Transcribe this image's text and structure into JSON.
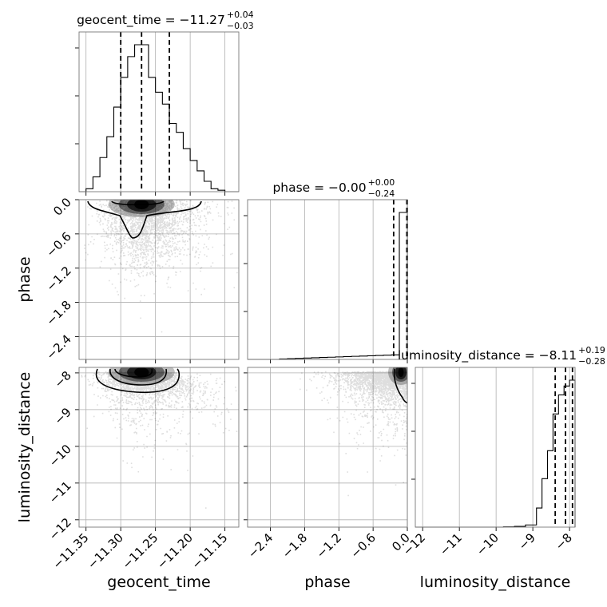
{
  "chart_data": {
    "type": "corner",
    "parameters": [
      {
        "name": "geocent_time",
        "title_main": "geocent_time = −11.27",
        "title_plus": "+0.04",
        "title_minus": "−0.03",
        "median": -11.27,
        "err_plus": 0.04,
        "err_minus": 0.03,
        "range": [
          -11.36,
          -11.13
        ],
        "ticks": [
          -11.35,
          -11.3,
          -11.25,
          -11.2,
          -11.15
        ],
        "tick_labels": [
          "−11.35",
          "−11.30",
          "−11.25",
          "−11.20",
          "−11.15"
        ],
        "quantile_lines": [
          -11.3,
          -11.27,
          -11.23
        ],
        "histogram": {
          "bin_edges": [
            -11.36,
            -11.35,
            -11.34,
            -11.33,
            -11.32,
            -11.31,
            -11.3,
            -11.29,
            -11.28,
            -11.27,
            -11.26,
            -11.25,
            -11.24,
            -11.23,
            -11.22,
            -11.21,
            -11.2,
            -11.19,
            -11.18,
            -11.17,
            -11.16,
            -11.15,
            -11.14,
            -11.13
          ],
          "counts": [
            0.0,
            0.02,
            0.1,
            0.23,
            0.37,
            0.57,
            0.77,
            0.91,
            0.99,
            0.99,
            0.77,
            0.67,
            0.59,
            0.46,
            0.4,
            0.29,
            0.21,
            0.14,
            0.07,
            0.02,
            0.01,
            0.0,
            0.0
          ]
        }
      },
      {
        "name": "phase",
        "title_main": "phase = −0.00",
        "title_plus": "+0.00",
        "title_minus": "−0.24",
        "median": -0.0,
        "err_plus": 0.0,
        "err_minus": 0.24,
        "range": [
          -2.8,
          0.0
        ],
        "ticks": [
          -2.4,
          -1.8,
          -1.2,
          -0.6,
          0.0
        ],
        "tick_labels": [
          "−2.4",
          "−1.8",
          "−1.2",
          "−0.6",
          "0.0"
        ],
        "quantile_lines": [
          -0.24,
          -0.01,
          0.0
        ],
        "histogram": {
          "bin_edges": [
            -2.8,
            -2.66,
            -2.52,
            -2.38,
            -2.24,
            -2.1,
            -1.96,
            -1.82,
            -1.68,
            -1.54,
            -1.4,
            -1.26,
            -1.12,
            -0.98,
            -0.84,
            -0.7,
            -0.56,
            -0.42,
            -0.28,
            -0.14,
            0.0
          ],
          "counts": [
            0.0,
            0.0,
            0.0,
            0.0,
            0.003,
            0.005,
            0.007,
            0.009,
            0.011,
            0.013,
            0.015,
            0.017,
            0.019,
            0.021,
            0.023,
            0.025,
            0.027,
            0.029,
            0.031,
            1.0
          ]
        }
      },
      {
        "name": "luminosity_distance",
        "title_main": "luminosity_distance = −8.11",
        "title_plus": "+0.19",
        "title_minus": "−0.28",
        "median": -8.11,
        "err_plus": 0.19,
        "err_minus": 0.28,
        "range": [
          -12.2,
          -7.85
        ],
        "ticks": [
          -12,
          -11,
          -10,
          -9,
          -8
        ],
        "tick_labels": [
          "−12",
          "−11",
          "−10",
          "−9",
          "−8"
        ],
        "quantile_lines": [
          -8.39,
          -8.11,
          -7.92
        ],
        "histogram": {
          "bin_edges": [
            -12.2,
            -9.8,
            -9.5,
            -9.2,
            -8.9,
            -8.75,
            -8.6,
            -8.45,
            -8.3,
            -8.15,
            -8.0,
            -7.85
          ],
          "counts": [
            0.0,
            0.002,
            0.005,
            0.015,
            0.13,
            0.33,
            0.52,
            0.77,
            0.9,
            0.96,
            1.0
          ]
        }
      }
    ],
    "axis_labels": {
      "x": [
        "geocent_time",
        "phase",
        "luminosity_distance"
      ],
      "y": [
        "phase",
        "luminosity_distance"
      ]
    },
    "grid": true,
    "contour_levels": 3
  }
}
